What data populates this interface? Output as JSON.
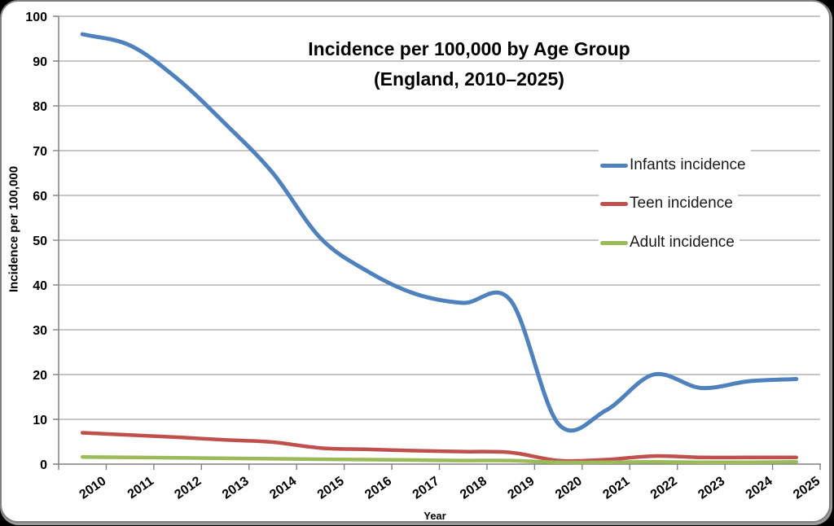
{
  "chart_data": {
    "type": "line",
    "title": "Incidence per 100,000 by Age Group",
    "subtitle": "(England, 2010–2025)",
    "xlabel": "Year",
    "ylabel": "Incidence per 100,000",
    "categories": [
      "2010",
      "2011",
      "2012",
      "2013",
      "2014",
      "2015",
      "2016",
      "2017",
      "2018",
      "2019",
      "2020",
      "2021",
      "2022",
      "2023",
      "2024",
      "2025"
    ],
    "series": [
      {
        "name": "Infants incidence",
        "color": "#4F81BD",
        "values": [
          96,
          93.5,
          86,
          76,
          65,
          50.5,
          43,
          38,
          36,
          36.5,
          9,
          12,
          20,
          17,
          18.5,
          19
        ]
      },
      {
        "name": "Teen incidence",
        "color": "#C0504D",
        "values": [
          7,
          6.5,
          6,
          5.4,
          4.9,
          3.6,
          3.3,
          3,
          2.8,
          2.6,
          0.8,
          1,
          1.8,
          1.5,
          1.5,
          1.5
        ]
      },
      {
        "name": "Adult incidence",
        "color": "#9BBB59",
        "values": [
          1.6,
          1.5,
          1.4,
          1.3,
          1.2,
          1.1,
          1,
          0.9,
          0.8,
          0.8,
          0.4,
          0.4,
          0.5,
          0.4,
          0.4,
          0.5
        ]
      }
    ],
    "ylim": [
      0,
      100
    ],
    "y_tick_step": 10,
    "grid": true,
    "line_smoothing": true,
    "legend_position": "overlay-right",
    "colors": {
      "gridline": "#A3A3A3",
      "axis": "#808080",
      "text": "#000000",
      "background": "#FFFFFF"
    }
  }
}
